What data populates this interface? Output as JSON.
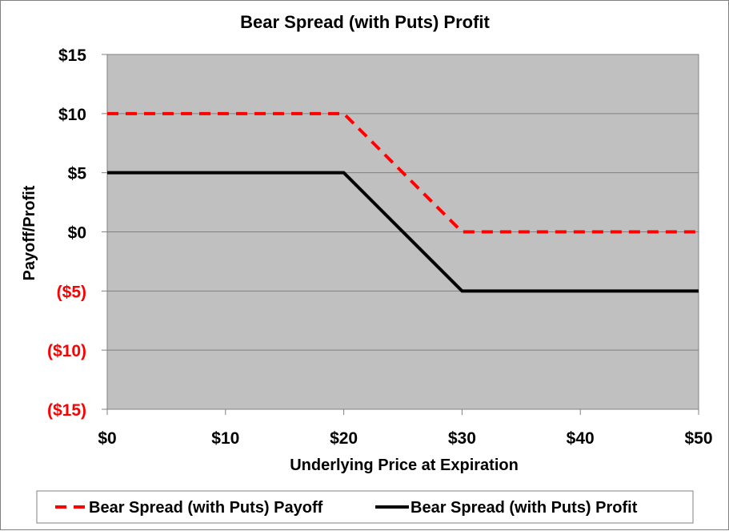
{
  "chart_data": {
    "type": "line",
    "title": "Bear Spread (with Puts) Profit",
    "xlabel": "Underlying Price at Expiration",
    "ylabel": "Payoff/Profit",
    "xlim": [
      0,
      50
    ],
    "ylim": [
      -15,
      15
    ],
    "x_ticks": [
      0,
      10,
      20,
      30,
      40,
      50
    ],
    "x_tick_labels": [
      "$0",
      "$10",
      "$20",
      "$30",
      "$40",
      "$50"
    ],
    "y_ticks": [
      15,
      10,
      5,
      0,
      -5,
      -10,
      -15
    ],
    "y_tick_labels": [
      "$15",
      "$10",
      "$5",
      "$0",
      "($5)",
      "($10)",
      "($15)"
    ],
    "negative_label_color": "#ff0000",
    "positive_label_color": "#000000",
    "plot_background": "#c0c0c0",
    "grid": true,
    "legend_position": "bottom",
    "series": [
      {
        "name": "Bear Spread (with Puts) Payoff",
        "style": "dashed",
        "color": "#ff0000",
        "x": [
          0,
          20,
          30,
          50
        ],
        "y": [
          10,
          10,
          0,
          0
        ]
      },
      {
        "name": "Bear Spread (with Puts) Profit",
        "style": "solid",
        "color": "#000000",
        "x": [
          0,
          20,
          30,
          50
        ],
        "y": [
          5,
          5,
          -5,
          -5
        ]
      }
    ]
  }
}
